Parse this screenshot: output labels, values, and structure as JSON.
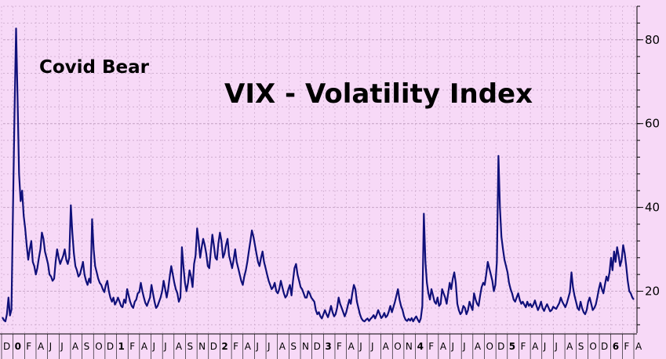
{
  "chart_data": {
    "type": "line",
    "title": "VIX - Volatility Index",
    "annotation": "Covid Bear",
    "xlabel": "",
    "ylabel": "",
    "ylim": [
      10,
      88
    ],
    "yticks": [
      20,
      40,
      60,
      80
    ],
    "grid": true,
    "colors": {
      "background": "#f7d9f7",
      "line": "#10107a",
      "grid": "#c9a8c9",
      "axis": "#000000"
    },
    "x_labels": [
      "D",
      "0",
      "F",
      "A",
      "J",
      "J",
      "A",
      "S",
      "O",
      "D",
      "1",
      "F",
      "A",
      "J",
      "J",
      "A",
      "S",
      "N",
      "D",
      "2",
      "F",
      "A",
      "J",
      "J",
      "A",
      "S",
      "N",
      "D",
      "3",
      "F",
      "A",
      "J",
      "J",
      "A",
      "O",
      "N",
      "4",
      "F",
      "A",
      "J",
      "J",
      "A",
      "O",
      "D",
      "5",
      "F",
      "A",
      "J",
      "J",
      "A",
      "S",
      "O",
      "D",
      "6",
      "F",
      "A"
    ],
    "year_markers": [
      "0",
      "1",
      "2",
      "3",
      "4",
      "5",
      "6"
    ],
    "series": [
      {
        "name": "VIX",
        "values": [
          13.8,
          13.1,
          12.8,
          14.5,
          18.5,
          14.2,
          15.6,
          40.1,
          62.5,
          82.7,
          66.0,
          48.0,
          41.5,
          44.0,
          38.0,
          35.0,
          31.0,
          27.5,
          30.0,
          32.0,
          27.0,
          26.0,
          24.0,
          25.5,
          28.0,
          30.0,
          34.0,
          32.5,
          29.5,
          28.0,
          26.5,
          24.0,
          23.5,
          22.5,
          23.0,
          27.0,
          30.0,
          28.0,
          26.5,
          27.5,
          28.5,
          30.0,
          27.5,
          26.5,
          28.0,
          40.5,
          34.0,
          29.0,
          26.0,
          25.0,
          23.5,
          24.0,
          25.5,
          27.0,
          24.0,
          22.5,
          21.5,
          23.0,
          22.0,
          37.2,
          30.0,
          26.0,
          24.5,
          23.0,
          22.0,
          21.5,
          20.5,
          19.8,
          21.5,
          22.5,
          20.0,
          18.5,
          17.5,
          18.5,
          16.8,
          17.5,
          18.5,
          17.5,
          16.5,
          16.2,
          18.0,
          17.2,
          20.5,
          19.0,
          17.5,
          16.5,
          16.0,
          17.5,
          18.0,
          19.5,
          19.8,
          22.0,
          20.0,
          18.5,
          17.2,
          16.5,
          17.5,
          18.5,
          21.5,
          19.5,
          17.5,
          16.0,
          16.5,
          17.5,
          18.5,
          20.0,
          22.5,
          20.5,
          18.5,
          20.5,
          23.5,
          26.0,
          24.0,
          22.0,
          20.5,
          19.5,
          17.5,
          18.5,
          30.5,
          26.0,
          22.0,
          20.0,
          22.0,
          25.0,
          23.5,
          21.0,
          26.5,
          28.5,
          35.0,
          32.0,
          28.0,
          30.5,
          32.5,
          31.0,
          29.0,
          26.0,
          25.5,
          29.5,
          33.5,
          31.0,
          28.0,
          27.5,
          31.5,
          34.0,
          32.0,
          28.0,
          29.0,
          31.0,
          32.5,
          28.5,
          27.0,
          25.5,
          27.5,
          30.0,
          27.0,
          25.5,
          24.0,
          22.5,
          21.5,
          23.5,
          25.0,
          27.0,
          29.5,
          32.0,
          34.5,
          33.0,
          31.0,
          29.0,
          27.0,
          26.0,
          28.0,
          29.5,
          27.0,
          25.5,
          24.0,
          22.5,
          21.5,
          20.5,
          21.0,
          22.0,
          20.0,
          19.5,
          20.5,
          22.5,
          21.0,
          19.5,
          18.5,
          19.0,
          20.5,
          21.5,
          19.0,
          22.5,
          25.5,
          26.5,
          24.0,
          22.5,
          21.0,
          20.5,
          19.5,
          18.5,
          18.5,
          20.0,
          19.5,
          18.5,
          18.0,
          17.5,
          15.5,
          14.5,
          15.0,
          14.0,
          13.5,
          14.5,
          15.5,
          14.5,
          13.8,
          15.0,
          16.5,
          15.0,
          14.0,
          14.5,
          16.0,
          18.5,
          17.0,
          16.0,
          15.0,
          14.0,
          15.0,
          16.5,
          18.0,
          17.0,
          19.5,
          21.5,
          20.5,
          17.5,
          16.0,
          14.5,
          13.5,
          13.0,
          12.8,
          13.2,
          13.5,
          12.9,
          13.4,
          13.8,
          14.3,
          13.5,
          14.4,
          15.5,
          14.5,
          13.6,
          14.0,
          14.8,
          13.8,
          14.2,
          15.2,
          16.5,
          15.0,
          16.2,
          17.5,
          19.0,
          20.5,
          18.0,
          16.5,
          15.5,
          14.0,
          13.2,
          12.9,
          13.4,
          13.0,
          13.6,
          12.8,
          13.5,
          14.0,
          13.2,
          12.6,
          13.5,
          16.5,
          38.5,
          27.0,
          22.0,
          19.5,
          18.0,
          20.5,
          19.0,
          17.5,
          17.0,
          18.5,
          16.5,
          17.0,
          20.5,
          19.5,
          18.5,
          17.0,
          19.5,
          22.0,
          20.5,
          23.0,
          24.5,
          22.0,
          17.0,
          15.5,
          14.5,
          15.0,
          16.5,
          16.0,
          14.5,
          15.5,
          17.5,
          16.5,
          15.5,
          19.5,
          18.0,
          17.0,
          16.5,
          19.0,
          21.0,
          22.0,
          21.5,
          24.0,
          27.0,
          25.5,
          24.0,
          22.5,
          20.0,
          21.5,
          27.0,
          52.3,
          40.0,
          33.0,
          30.0,
          27.5,
          26.0,
          24.5,
          22.0,
          20.5,
          19.5,
          18.0,
          17.5,
          18.5,
          19.5,
          18.0,
          17.0,
          17.5,
          16.8,
          16.2,
          17.5,
          16.5,
          17.0,
          16.2,
          16.8,
          17.8,
          16.5,
          15.5,
          16.3,
          17.5,
          16.0,
          15.3,
          16.2,
          16.9,
          16.0,
          15.2,
          15.5,
          16.3,
          16.0,
          15.8,
          16.5,
          17.2,
          18.5,
          17.5,
          16.8,
          16.2,
          17.2,
          18.5,
          19.8,
          24.5,
          21.0,
          19.0,
          17.5,
          16.0,
          15.5,
          17.5,
          16.0,
          15.0,
          14.5,
          15.5,
          17.5,
          18.5,
          17.0,
          15.5,
          16.0,
          16.8,
          18.5,
          20.5,
          22.0,
          20.5,
          19.5,
          21.5,
          23.5,
          22.5,
          24.5,
          28.0,
          25.0,
          29.5,
          27.0,
          30.5,
          28.5,
          26.0,
          27.5,
          31.0,
          29.0,
          26.0,
          22.5,
          20.0,
          19.5,
          18.5,
          18.0
        ],
        "values_pre": []
      }
    ]
  }
}
